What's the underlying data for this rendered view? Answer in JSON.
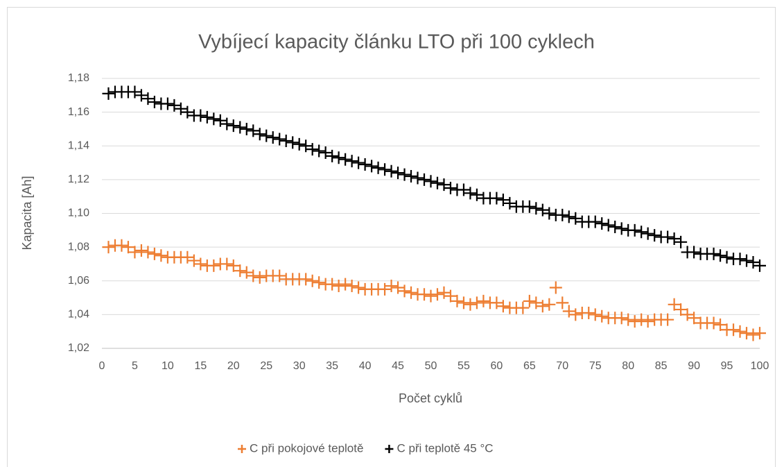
{
  "chart_data": {
    "type": "scatter",
    "title": "Vybíjecí kapacity článku LTO při 100 cyklech",
    "xlabel": "Počet cyklů",
    "ylabel": "Kapacita [Ah]",
    "x": [
      1,
      2,
      3,
      4,
      5,
      6,
      7,
      8,
      9,
      10,
      11,
      12,
      13,
      14,
      15,
      16,
      17,
      18,
      19,
      20,
      21,
      22,
      23,
      24,
      25,
      26,
      27,
      28,
      29,
      30,
      31,
      32,
      33,
      34,
      35,
      36,
      37,
      38,
      39,
      40,
      41,
      42,
      43,
      44,
      45,
      46,
      47,
      48,
      49,
      50,
      51,
      52,
      53,
      54,
      55,
      56,
      57,
      58,
      59,
      60,
      61,
      62,
      63,
      64,
      65,
      66,
      67,
      68,
      69,
      70,
      71,
      72,
      73,
      74,
      75,
      76,
      77,
      78,
      79,
      80,
      81,
      82,
      83,
      84,
      85,
      86,
      87,
      88,
      89,
      90,
      91,
      92,
      93,
      94,
      95,
      96,
      97,
      98,
      99,
      100
    ],
    "series": [
      {
        "name": "C při pokojové teplotě",
        "color": "#ed7d31",
        "values": [
          1.08,
          1.081,
          1.081,
          1.08,
          1.077,
          1.078,
          1.077,
          1.076,
          1.075,
          1.074,
          1.074,
          1.074,
          1.074,
          1.072,
          1.07,
          1.069,
          1.069,
          1.07,
          1.07,
          1.069,
          1.066,
          1.065,
          1.063,
          1.062,
          1.063,
          1.063,
          1.063,
          1.061,
          1.061,
          1.061,
          1.061,
          1.06,
          1.059,
          1.058,
          1.058,
          1.057,
          1.058,
          1.057,
          1.056,
          1.055,
          1.055,
          1.055,
          1.055,
          1.057,
          1.056,
          1.054,
          1.053,
          1.052,
          1.052,
          1.051,
          1.052,
          1.053,
          1.051,
          1.048,
          1.047,
          1.046,
          1.047,
          1.048,
          1.047,
          1.047,
          1.045,
          1.044,
          1.044,
          1.044,
          1.048,
          1.047,
          1.045,
          1.046,
          1.056,
          1.047,
          1.042,
          1.04,
          1.041,
          1.041,
          1.04,
          1.039,
          1.038,
          1.038,
          1.038,
          1.037,
          1.036,
          1.037,
          1.036,
          1.037,
          1.037,
          1.037,
          1.046,
          1.043,
          1.04,
          1.038,
          1.035,
          1.035,
          1.035,
          1.034,
          1.031,
          1.031,
          1.03,
          1.029,
          1.028,
          1.029
        ]
      },
      {
        "name": "C při teplotě 45 °C",
        "color": "#000000",
        "values": [
          1.171,
          1.172,
          1.172,
          1.172,
          1.172,
          1.17,
          1.168,
          1.166,
          1.165,
          1.165,
          1.164,
          1.162,
          1.16,
          1.158,
          1.158,
          1.157,
          1.156,
          1.155,
          1.153,
          1.152,
          1.151,
          1.15,
          1.149,
          1.147,
          1.146,
          1.145,
          1.144,
          1.143,
          1.142,
          1.141,
          1.14,
          1.138,
          1.137,
          1.136,
          1.134,
          1.133,
          1.132,
          1.131,
          1.13,
          1.129,
          1.128,
          1.127,
          1.126,
          1.125,
          1.124,
          1.123,
          1.122,
          1.121,
          1.12,
          1.119,
          1.118,
          1.117,
          1.115,
          1.114,
          1.114,
          1.112,
          1.111,
          1.109,
          1.109,
          1.109,
          1.108,
          1.106,
          1.104,
          1.104,
          1.104,
          1.103,
          1.102,
          1.1,
          1.099,
          1.099,
          1.098,
          1.097,
          1.095,
          1.095,
          1.095,
          1.094,
          1.093,
          1.092,
          1.091,
          1.09,
          1.09,
          1.089,
          1.088,
          1.087,
          1.086,
          1.086,
          1.085,
          1.083,
          1.077,
          1.077,
          1.076,
          1.076,
          1.076,
          1.075,
          1.074,
          1.073,
          1.073,
          1.072,
          1.071,
          1.069
        ]
      }
    ],
    "xlim": [
      0,
      100
    ],
    "xticks": [
      0,
      5,
      10,
      15,
      20,
      25,
      30,
      35,
      40,
      45,
      50,
      55,
      60,
      65,
      70,
      75,
      80,
      85,
      90,
      95,
      100
    ],
    "ylim": [
      1.02,
      1.18
    ],
    "yticks": [
      {
        "value": 1.02,
        "label": "1,02"
      },
      {
        "value": 1.04,
        "label": "1,04"
      },
      {
        "value": 1.06,
        "label": "1,06"
      },
      {
        "value": 1.08,
        "label": "1,08"
      },
      {
        "value": 1.1,
        "label": "1,10"
      },
      {
        "value": 1.12,
        "label": "1,12"
      },
      {
        "value": 1.14,
        "label": "1,14"
      },
      {
        "value": 1.16,
        "label": "1,16"
      },
      {
        "value": 1.18,
        "label": "1,18"
      }
    ],
    "grid": true,
    "legend": "bottom"
  }
}
